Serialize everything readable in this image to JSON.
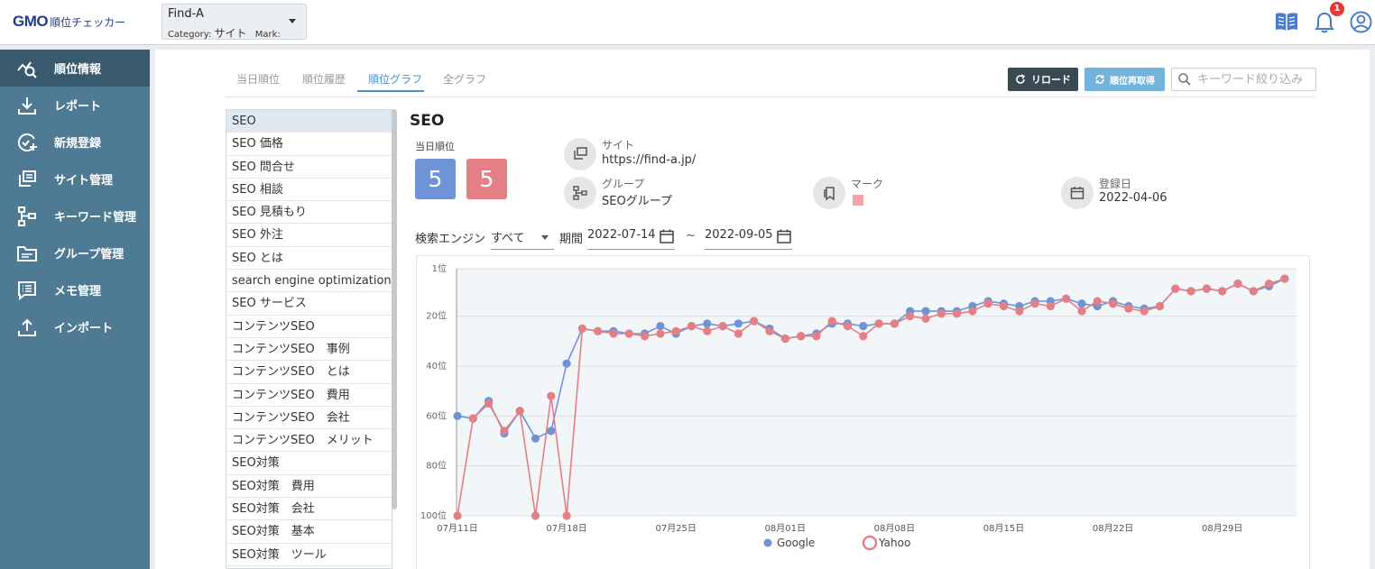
{
  "header": {
    "logo_brand": "GMO",
    "logo_product": "順位チェッカー",
    "site_name": "Find-A",
    "category_label": "Category:",
    "category_value": "サイト",
    "mark_label": "Mark:",
    "notification_count": "1",
    "icons": [
      "manual-book-icon",
      "bell-icon",
      "user-account-icon"
    ]
  },
  "sidebar": {
    "items": [
      {
        "label": "順位情報",
        "icon": "rank-chart-icon"
      },
      {
        "label": "レポート",
        "icon": "download-icon"
      },
      {
        "label": "新規登録",
        "icon": "add-circle-icon"
      },
      {
        "label": "サイト管理",
        "icon": "sites-icon"
      },
      {
        "label": "キーワード管理",
        "icon": "keyword-tree-icon"
      },
      {
        "label": "グループ管理",
        "icon": "folder-icon"
      },
      {
        "label": "メモ管理",
        "icon": "memo-icon"
      },
      {
        "label": "インポート",
        "icon": "upload-icon"
      }
    ]
  },
  "tabs": [
    "当日順位",
    "順位履歴",
    "順位グラフ",
    "全グラフ"
  ],
  "toolbar": {
    "reload_label": "リロード",
    "refetch_label": "順位再取得",
    "search_placeholder": "キーワード絞り込み"
  },
  "keywords": [
    "SEO",
    "SEO 価格",
    "SEO 問合せ",
    "SEO 相談",
    "SEO 見積もり",
    "SEO 外注",
    "SEO とは",
    "search engine optimization",
    "SEO サービス",
    "コンテンツSEO",
    "コンテンツSEO　事例",
    "コンテンツSEO　とは",
    "コンテンツSEO　費用",
    "コンテンツSEO　会社",
    "コンテンツSEO　メリット",
    "SEO対策",
    "SEO対策　費用",
    "SEO対策　会社",
    "SEO対策　基本",
    "SEO対策　ツール"
  ],
  "detail": {
    "title": "SEO",
    "rank_label": "当日順位",
    "google_rank": "5",
    "yahoo_rank": "5",
    "site_label": "サイト",
    "site_url": "https://find-a.jp/",
    "group_label": "グループ",
    "group_value": "SEOグループ",
    "mark_label": "マーク",
    "mark_color": "#f4a3a8",
    "registered_label": "登録日",
    "registered_value": "2022-04-06"
  },
  "filters": {
    "engine_label": "検索エンジン",
    "engine_value": "すべて",
    "period_label": "期間",
    "start_date": "2022-07-14",
    "separator": "~",
    "end_date": "2022-09-05"
  },
  "colors": {
    "google": "#6f94d6",
    "yahoo": "#e37f85",
    "sidebar": "#4f7a94",
    "sidebar_active": "#395a6e",
    "accent": "#4f8fc9"
  },
  "chart_data": {
    "type": "line",
    "y_axis_inverted": true,
    "ylim": [
      100,
      1
    ],
    "y_ticks": [
      "1位",
      "20位",
      "40位",
      "60位",
      "80位",
      "100位"
    ],
    "x_ticks": [
      "07月11日",
      "07月18日",
      "07月25日",
      "08月01日",
      "08月08日",
      "08月15日",
      "08月22日",
      "08月29日"
    ],
    "x_start": "07月11日",
    "legend_position": "bottom",
    "grid": true,
    "series": [
      {
        "name": "Google",
        "values": [
          60,
          61,
          54,
          67,
          58,
          69,
          66,
          39,
          25,
          26,
          26,
          27,
          27,
          24,
          27,
          24,
          23,
          24,
          23,
          22,
          25,
          29,
          28,
          27,
          23,
          23,
          24,
          23,
          23,
          18,
          18,
          18,
          18,
          16,
          14,
          15,
          16,
          14,
          14,
          13,
          15,
          16,
          14,
          16,
          17,
          16,
          9,
          10,
          9,
          10,
          7,
          10,
          8,
          5
        ]
      },
      {
        "name": "Yahoo",
        "values": [
          101,
          61,
          55,
          66,
          58,
          101,
          52,
          101,
          25,
          26,
          27,
          27,
          28,
          27,
          26,
          24,
          26,
          24,
          27,
          22,
          26,
          29,
          28,
          28,
          22,
          24,
          28,
          23,
          23,
          20,
          21,
          19,
          19,
          18,
          15,
          16,
          18,
          15,
          16,
          13,
          18,
          14,
          15,
          17,
          18,
          16,
          9,
          10,
          9,
          10,
          7,
          10,
          7,
          5
        ]
      }
    ]
  }
}
